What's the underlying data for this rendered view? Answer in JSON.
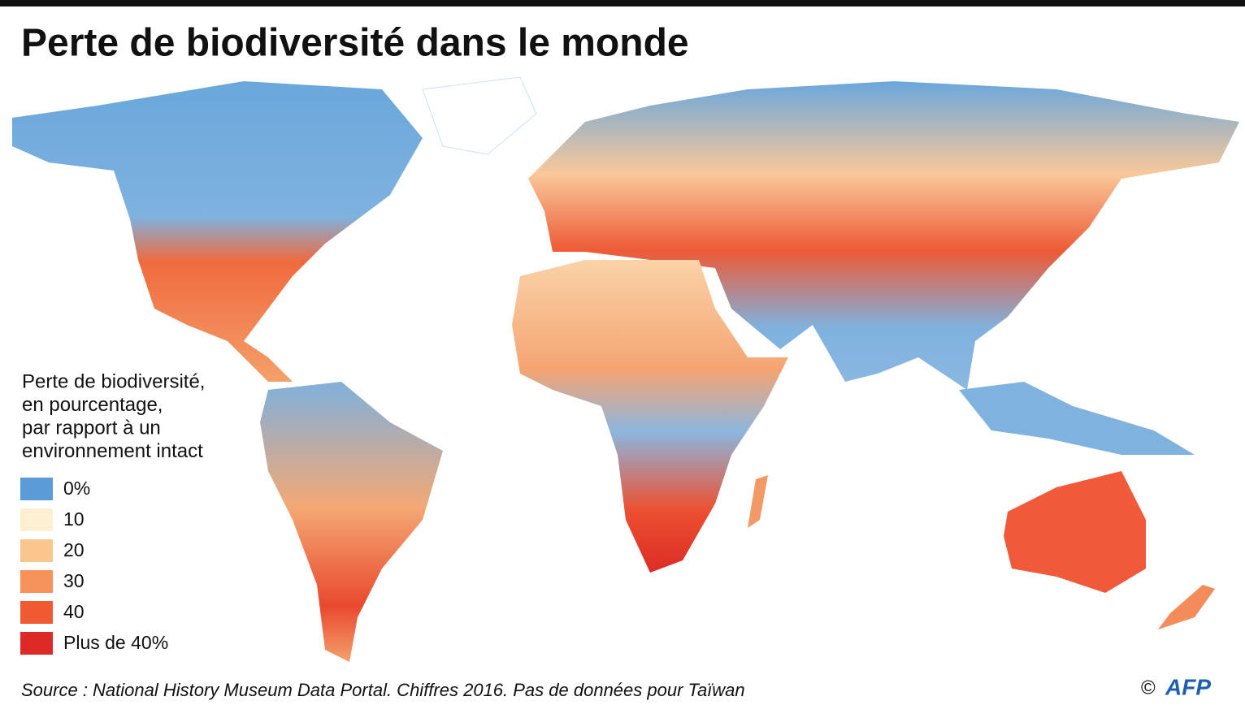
{
  "header": {
    "title": "Perte de biodiversité dans le monde"
  },
  "legend": {
    "title_lines": [
      "Perte de biodiversité,",
      "en pourcentage,",
      "par rapport à un",
      "environnement intact"
    ],
    "items": [
      {
        "label": "0%",
        "color": "#5b9bd8"
      },
      {
        "label": "10",
        "color": "#fdf0d2"
      },
      {
        "label": "20",
        "color": "#fbc58e"
      },
      {
        "label": "30",
        "color": "#f7935a"
      },
      {
        "label": "40",
        "color": "#f05a32"
      },
      {
        "label": "Plus de 40%",
        "color": "#de2a26"
      }
    ]
  },
  "footer": {
    "source": "Source : National History Museum Data Portal. Chiffres 2016. Pas de données pour Taïwan",
    "copyright": "©",
    "logo": "AFP"
  }
}
